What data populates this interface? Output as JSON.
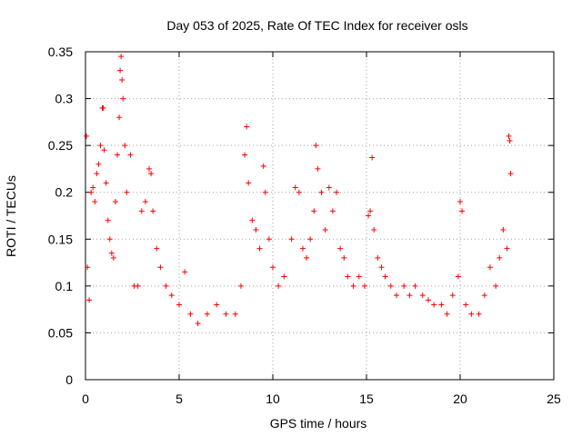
{
  "chart_data": {
    "type": "scatter",
    "title": "Day 053 of 2025, Rate Of TEC Index for receiver osls",
    "xlabel": "GPS time / hours",
    "ylabel": "ROTI / TECUs",
    "xlim": [
      0,
      25
    ],
    "ylim": [
      0,
      0.35
    ],
    "xticks": [
      "0",
      "5",
      "10",
      "15",
      "20",
      "25"
    ],
    "yticks": [
      "0",
      "0.05",
      "0.1",
      "0.15",
      "0.2",
      "0.25",
      "0.3",
      "0.35"
    ],
    "grid": true,
    "marker": "+",
    "color": "#ff0000",
    "series": [
      {
        "name": "",
        "points": [
          [
            0.05,
            0.26
          ],
          [
            0.1,
            0.12
          ],
          [
            0.2,
            0.085
          ],
          [
            0.3,
            0.2
          ],
          [
            0.4,
            0.205
          ],
          [
            0.5,
            0.19
          ],
          [
            0.6,
            0.22
          ],
          [
            0.7,
            0.23
          ],
          [
            0.8,
            0.25
          ],
          [
            0.9,
            0.29
          ],
          [
            0.95,
            0.29
          ],
          [
            1.0,
            0.245
          ],
          [
            1.1,
            0.21
          ],
          [
            1.2,
            0.17
          ],
          [
            1.3,
            0.15
          ],
          [
            1.4,
            0.135
          ],
          [
            1.5,
            0.13
          ],
          [
            1.6,
            0.19
          ],
          [
            1.7,
            0.24
          ],
          [
            1.8,
            0.28
          ],
          [
            1.85,
            0.33
          ],
          [
            1.9,
            0.345
          ],
          [
            1.95,
            0.32
          ],
          [
            2.0,
            0.3
          ],
          [
            2.1,
            0.25
          ],
          [
            2.2,
            0.2
          ],
          [
            2.4,
            0.24
          ],
          [
            2.6,
            0.1
          ],
          [
            2.8,
            0.1
          ],
          [
            3.0,
            0.18
          ],
          [
            3.2,
            0.19
          ],
          [
            3.4,
            0.225
          ],
          [
            3.5,
            0.22
          ],
          [
            3.6,
            0.18
          ],
          [
            3.8,
            0.14
          ],
          [
            4.0,
            0.12
          ],
          [
            4.3,
            0.1
          ],
          [
            4.6,
            0.09
          ],
          [
            5.0,
            0.08
          ],
          [
            5.3,
            0.115
          ],
          [
            5.6,
            0.07
          ],
          [
            6.0,
            0.06
          ],
          [
            6.5,
            0.07
          ],
          [
            7.0,
            0.08
          ],
          [
            7.5,
            0.07
          ],
          [
            8.0,
            0.07
          ],
          [
            8.3,
            0.1
          ],
          [
            8.5,
            0.24
          ],
          [
            8.6,
            0.27
          ],
          [
            8.7,
            0.21
          ],
          [
            8.9,
            0.17
          ],
          [
            9.1,
            0.16
          ],
          [
            9.3,
            0.14
          ],
          [
            9.5,
            0.228
          ],
          [
            9.6,
            0.2
          ],
          [
            9.8,
            0.15
          ],
          [
            10.0,
            0.12
          ],
          [
            10.3,
            0.1
          ],
          [
            10.6,
            0.11
          ],
          [
            11.0,
            0.15
          ],
          [
            11.2,
            0.205
          ],
          [
            11.4,
            0.2
          ],
          [
            11.6,
            0.14
          ],
          [
            11.8,
            0.13
          ],
          [
            12.0,
            0.15
          ],
          [
            12.2,
            0.18
          ],
          [
            12.3,
            0.25
          ],
          [
            12.4,
            0.225
          ],
          [
            12.6,
            0.2
          ],
          [
            12.8,
            0.16
          ],
          [
            13.0,
            0.205
          ],
          [
            13.2,
            0.18
          ],
          [
            13.4,
            0.2
          ],
          [
            13.6,
            0.14
          ],
          [
            13.8,
            0.13
          ],
          [
            14.0,
            0.11
          ],
          [
            14.3,
            0.1
          ],
          [
            14.6,
            0.11
          ],
          [
            14.9,
            0.1
          ],
          [
            15.1,
            0.175
          ],
          [
            15.2,
            0.18
          ],
          [
            15.3,
            0.237
          ],
          [
            15.4,
            0.16
          ],
          [
            15.6,
            0.13
          ],
          [
            15.8,
            0.12
          ],
          [
            16.0,
            0.11
          ],
          [
            16.3,
            0.1
          ],
          [
            16.6,
            0.09
          ],
          [
            17.0,
            0.1
          ],
          [
            17.3,
            0.09
          ],
          [
            17.6,
            0.1
          ],
          [
            18.0,
            0.09
          ],
          [
            18.3,
            0.085
          ],
          [
            18.6,
            0.08
          ],
          [
            19.0,
            0.08
          ],
          [
            19.3,
            0.07
          ],
          [
            19.6,
            0.09
          ],
          [
            19.9,
            0.11
          ],
          [
            20.0,
            0.19
          ],
          [
            20.1,
            0.18
          ],
          [
            20.3,
            0.08
          ],
          [
            20.6,
            0.07
          ],
          [
            21.0,
            0.07
          ],
          [
            21.3,
            0.09
          ],
          [
            21.6,
            0.12
          ],
          [
            21.9,
            0.1
          ],
          [
            22.1,
            0.13
          ],
          [
            22.3,
            0.16
          ],
          [
            22.5,
            0.14
          ],
          [
            22.6,
            0.26
          ],
          [
            22.65,
            0.255
          ],
          [
            22.7,
            0.22
          ]
        ]
      }
    ]
  }
}
